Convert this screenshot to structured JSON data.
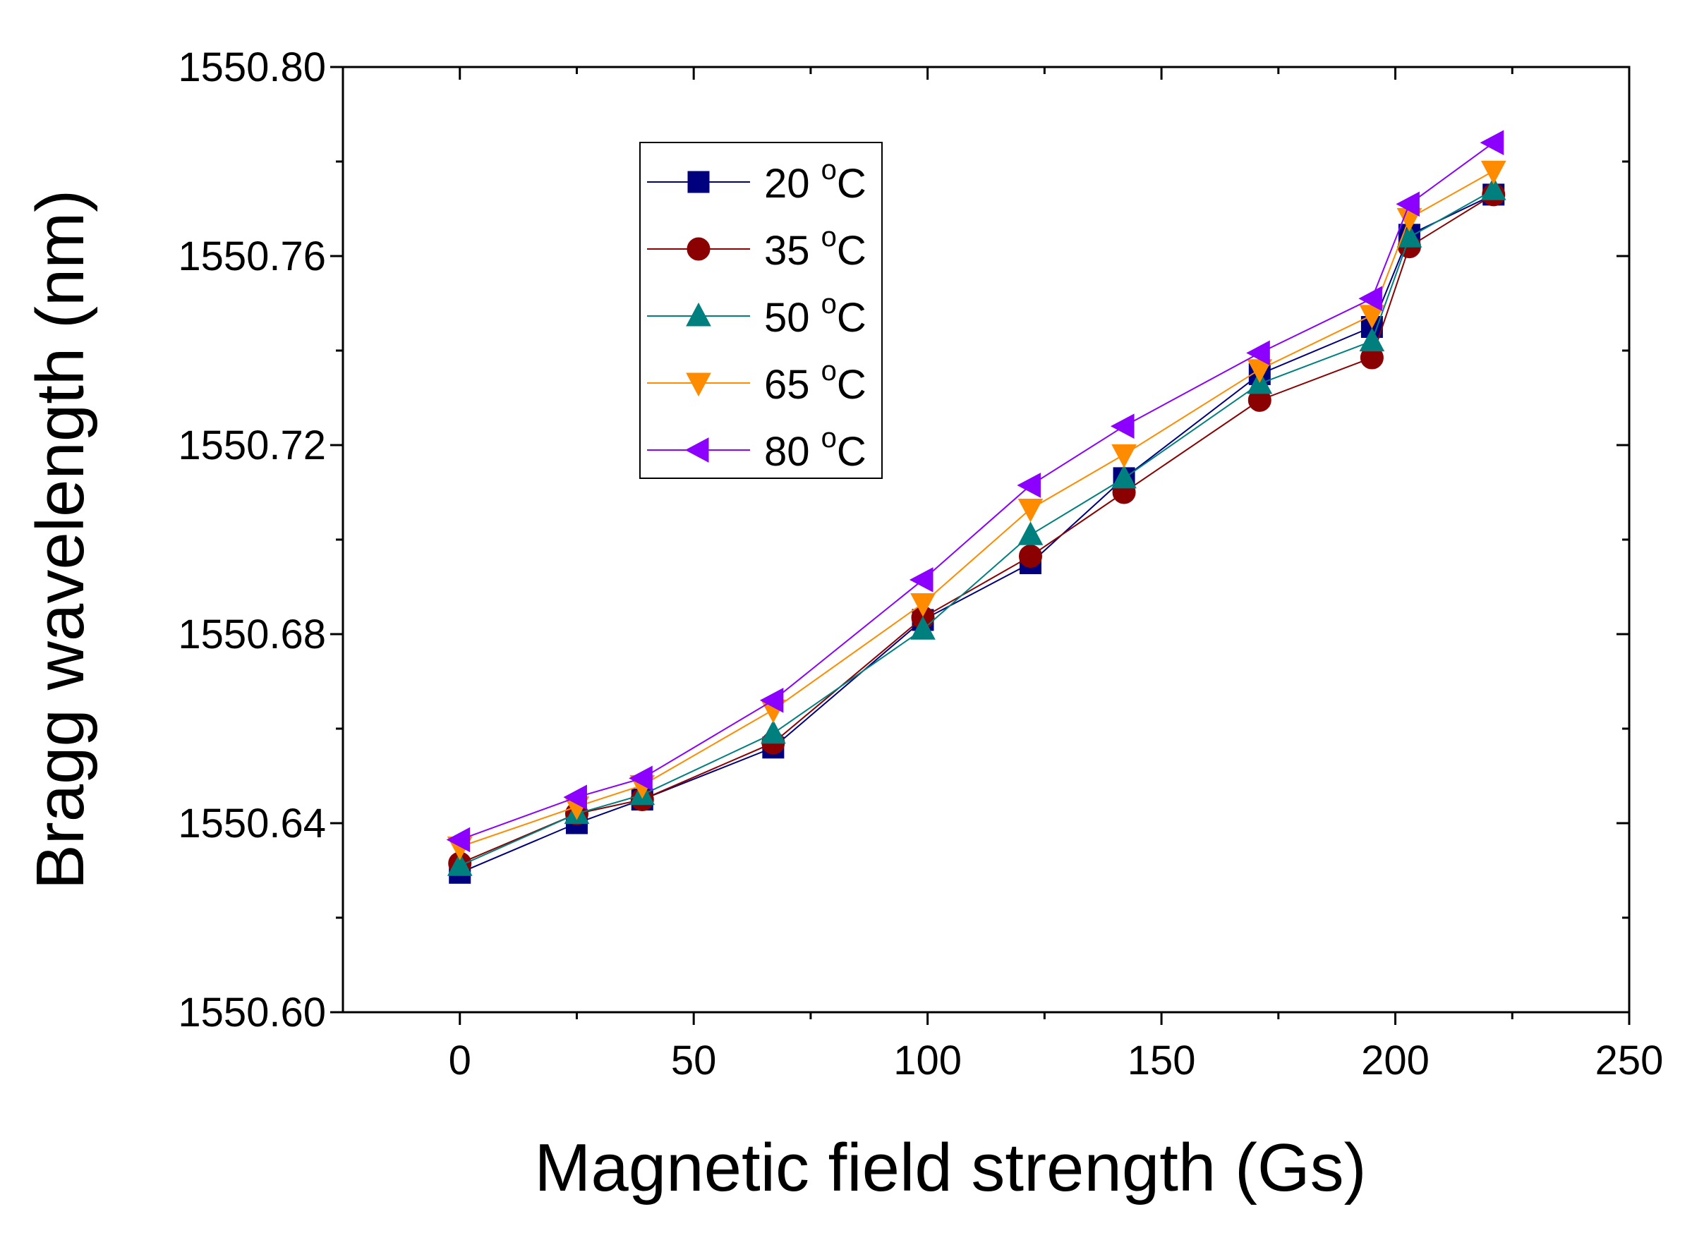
{
  "chart_data": {
    "type": "line",
    "title": "",
    "xlabel": "Magnetic field strength (Gs)",
    "ylabel": "Bragg wavelength (nm)",
    "xlim": [
      -25,
      250
    ],
    "ylim": [
      1550.6,
      1550.8
    ],
    "x_ticks": [
      "0",
      "50",
      "100",
      "150",
      "200",
      "250"
    ],
    "x_tick_values": [
      0,
      50,
      100,
      150,
      200,
      250
    ],
    "y_ticks": [
      "1550.60",
      "1550.64",
      "1550.68",
      "1550.72",
      "1550.76",
      "1550.80"
    ],
    "y_tick_values": [
      1550.6,
      1550.64,
      1550.68,
      1550.72,
      1550.76,
      1550.8
    ],
    "grid": false,
    "legend_position": "top-left-center",
    "x": [
      0,
      25,
      39,
      67,
      99,
      122,
      142,
      171,
      195,
      203,
      221
    ],
    "series": [
      {
        "name": "20 °C",
        "label_main": "20 ",
        "label_sup": "o",
        "label_unit": "C",
        "color": "#00007F",
        "marker": "square",
        "values": [
          1550.6295,
          1550.64,
          1550.645,
          1550.656,
          1550.683,
          1550.695,
          1550.713,
          1550.735,
          1550.745,
          1550.7645,
          1550.773
        ]
      },
      {
        "name": "35 °C",
        "label_main": "35 ",
        "label_sup": "o",
        "label_unit": "C",
        "color": "#8B0000",
        "marker": "circle",
        "values": [
          1550.6315,
          1550.642,
          1550.645,
          1550.657,
          1550.6835,
          1550.6965,
          1550.71,
          1550.7295,
          1550.7385,
          1550.762,
          1550.773
        ]
      },
      {
        "name": "50 °C",
        "label_main": "50 ",
        "label_sup": "o",
        "label_unit": "C",
        "color": "#007F7F",
        "marker": "triangle-up",
        "values": [
          1550.631,
          1550.642,
          1550.646,
          1550.659,
          1550.681,
          1550.701,
          1550.713,
          1550.733,
          1550.742,
          1550.764,
          1550.774
        ]
      },
      {
        "name": "65 °C",
        "label_main": "65 ",
        "label_sup": "o",
        "label_unit": "C",
        "color": "#FF8C00",
        "marker": "triangle-down",
        "values": [
          1550.635,
          1550.6435,
          1550.648,
          1550.664,
          1550.6865,
          1550.7065,
          1550.718,
          1550.736,
          1550.7475,
          1550.768,
          1550.778
        ]
      },
      {
        "name": "80 °C",
        "label_main": "80 ",
        "label_sup": "o",
        "label_unit": "C",
        "color": "#8B00FF",
        "marker": "triangle-left",
        "values": [
          1550.6365,
          1550.6455,
          1550.6495,
          1550.666,
          1550.6915,
          1550.7115,
          1550.724,
          1550.7395,
          1550.751,
          1550.771,
          1550.784
        ]
      }
    ]
  }
}
